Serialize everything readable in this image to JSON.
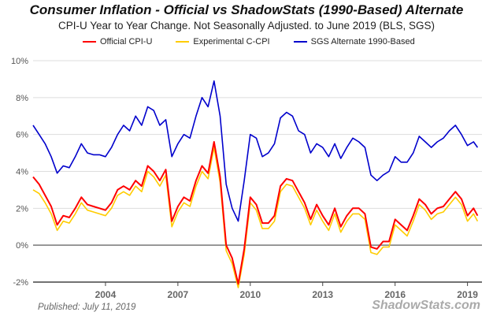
{
  "chart_data": {
    "type": "line",
    "title": "Consumer Inflation - Official vs ShadowStats (1990-Based) Alternate",
    "subtitle": "CPI-U Year to Year Change. Not Seasonally Adjusted. to June 2019  (BLS, SGS)",
    "published": "Published: July 11, 2019",
    "watermark": "ShadowStats.com",
    "xlim": [
      "2001-01",
      "2019-06"
    ],
    "ylim": [
      -2,
      10
    ],
    "yticks": [
      -2,
      0,
      2,
      4,
      6,
      8,
      10
    ],
    "ytick_labels": [
      "-2%",
      "0%",
      "2%",
      "4%",
      "6%",
      "8%",
      "10%"
    ],
    "xticks": [
      "2004",
      "2007",
      "2010",
      "2013",
      "2016",
      "2019"
    ],
    "grid": true,
    "legend_position": "top",
    "x": [
      "2001-01",
      "2001-04",
      "2001-07",
      "2001-10",
      "2002-01",
      "2002-04",
      "2002-07",
      "2002-10",
      "2003-01",
      "2003-04",
      "2003-07",
      "2003-10",
      "2004-01",
      "2004-04",
      "2004-07",
      "2004-10",
      "2005-01",
      "2005-04",
      "2005-07",
      "2005-10",
      "2006-01",
      "2006-04",
      "2006-07",
      "2006-10",
      "2007-01",
      "2007-04",
      "2007-07",
      "2007-10",
      "2008-01",
      "2008-04",
      "2008-07",
      "2008-10",
      "2009-01",
      "2009-04",
      "2009-07",
      "2009-10",
      "2010-01",
      "2010-04",
      "2010-07",
      "2010-10",
      "2011-01",
      "2011-04",
      "2011-07",
      "2011-10",
      "2012-01",
      "2012-04",
      "2012-07",
      "2012-10",
      "2013-01",
      "2013-04",
      "2013-07",
      "2013-10",
      "2014-01",
      "2014-04",
      "2014-07",
      "2014-10",
      "2015-01",
      "2015-04",
      "2015-07",
      "2015-10",
      "2016-01",
      "2016-04",
      "2016-07",
      "2016-10",
      "2017-01",
      "2017-04",
      "2017-07",
      "2017-10",
      "2018-01",
      "2018-04",
      "2018-07",
      "2018-10",
      "2019-01",
      "2019-04",
      "2019-06"
    ],
    "series": [
      {
        "name": "SGS  Alternate 1990-Based",
        "color": "#0000cc",
        "values": [
          6.5,
          6.0,
          5.5,
          4.8,
          3.9,
          4.3,
          4.2,
          4.8,
          5.5,
          5.0,
          4.9,
          4.9,
          4.8,
          5.3,
          6.0,
          6.5,
          6.2,
          7.0,
          6.5,
          7.5,
          7.3,
          6.5,
          6.8,
          4.8,
          5.5,
          6.0,
          5.8,
          7.0,
          8.0,
          7.5,
          8.9,
          7.0,
          3.3,
          2.0,
          1.3,
          3.5,
          6.0,
          5.8,
          4.8,
          5.0,
          5.5,
          6.9,
          7.2,
          7.0,
          6.2,
          6.0,
          5.0,
          5.5,
          5.3,
          4.8,
          5.5,
          4.7,
          5.3,
          5.8,
          5.6,
          5.3,
          3.8,
          3.5,
          3.8,
          4.0,
          4.8,
          4.5,
          4.5,
          5.0,
          5.9,
          5.6,
          5.3,
          5.6,
          5.8,
          6.2,
          6.5,
          6.0,
          5.4,
          5.6,
          5.3
        ]
      },
      {
        "name": "Experimental C-CPI",
        "color": "#ffcc00",
        "values": [
          3.0,
          2.8,
          2.3,
          1.7,
          0.8,
          1.3,
          1.2,
          1.7,
          2.3,
          1.9,
          1.8,
          1.7,
          1.6,
          2.0,
          2.7,
          2.9,
          2.7,
          3.2,
          2.9,
          4.0,
          3.7,
          3.2,
          3.8,
          1.0,
          1.8,
          2.3,
          2.1,
          3.2,
          4.0,
          3.6,
          5.3,
          3.4,
          -0.3,
          -1.0,
          -2.3,
          -0.5,
          2.3,
          1.9,
          0.9,
          0.9,
          1.3,
          2.9,
          3.3,
          3.2,
          2.6,
          2.0,
          1.1,
          1.9,
          1.3,
          0.8,
          1.7,
          0.7,
          1.3,
          1.7,
          1.7,
          1.4,
          -0.4,
          -0.5,
          -0.1,
          -0.1,
          1.1,
          0.8,
          0.5,
          1.3,
          2.2,
          1.9,
          1.4,
          1.7,
          1.8,
          2.2,
          2.6,
          2.2,
          1.3,
          1.7,
          1.3
        ]
      },
      {
        "name": "Official CPI-U",
        "color": "#ff0000",
        "values": [
          3.7,
          3.3,
          2.7,
          2.1,
          1.1,
          1.6,
          1.5,
          2.0,
          2.6,
          2.2,
          2.1,
          2.0,
          1.9,
          2.3,
          3.0,
          3.2,
          3.0,
          3.5,
          3.2,
          4.3,
          4.0,
          3.5,
          4.1,
          1.3,
          2.1,
          2.6,
          2.4,
          3.5,
          4.3,
          3.9,
          5.6,
          3.7,
          0.0,
          -0.7,
          -2.1,
          -0.2,
          2.6,
          2.2,
          1.2,
          1.2,
          1.6,
          3.2,
          3.6,
          3.5,
          2.9,
          2.3,
          1.4,
          2.2,
          1.6,
          1.1,
          2.0,
          1.0,
          1.6,
          2.0,
          2.0,
          1.7,
          -0.1,
          -0.2,
          0.2,
          0.2,
          1.4,
          1.1,
          0.8,
          1.6,
          2.5,
          2.2,
          1.7,
          2.0,
          2.1,
          2.5,
          2.9,
          2.5,
          1.6,
          2.0,
          1.6
        ]
      }
    ]
  }
}
